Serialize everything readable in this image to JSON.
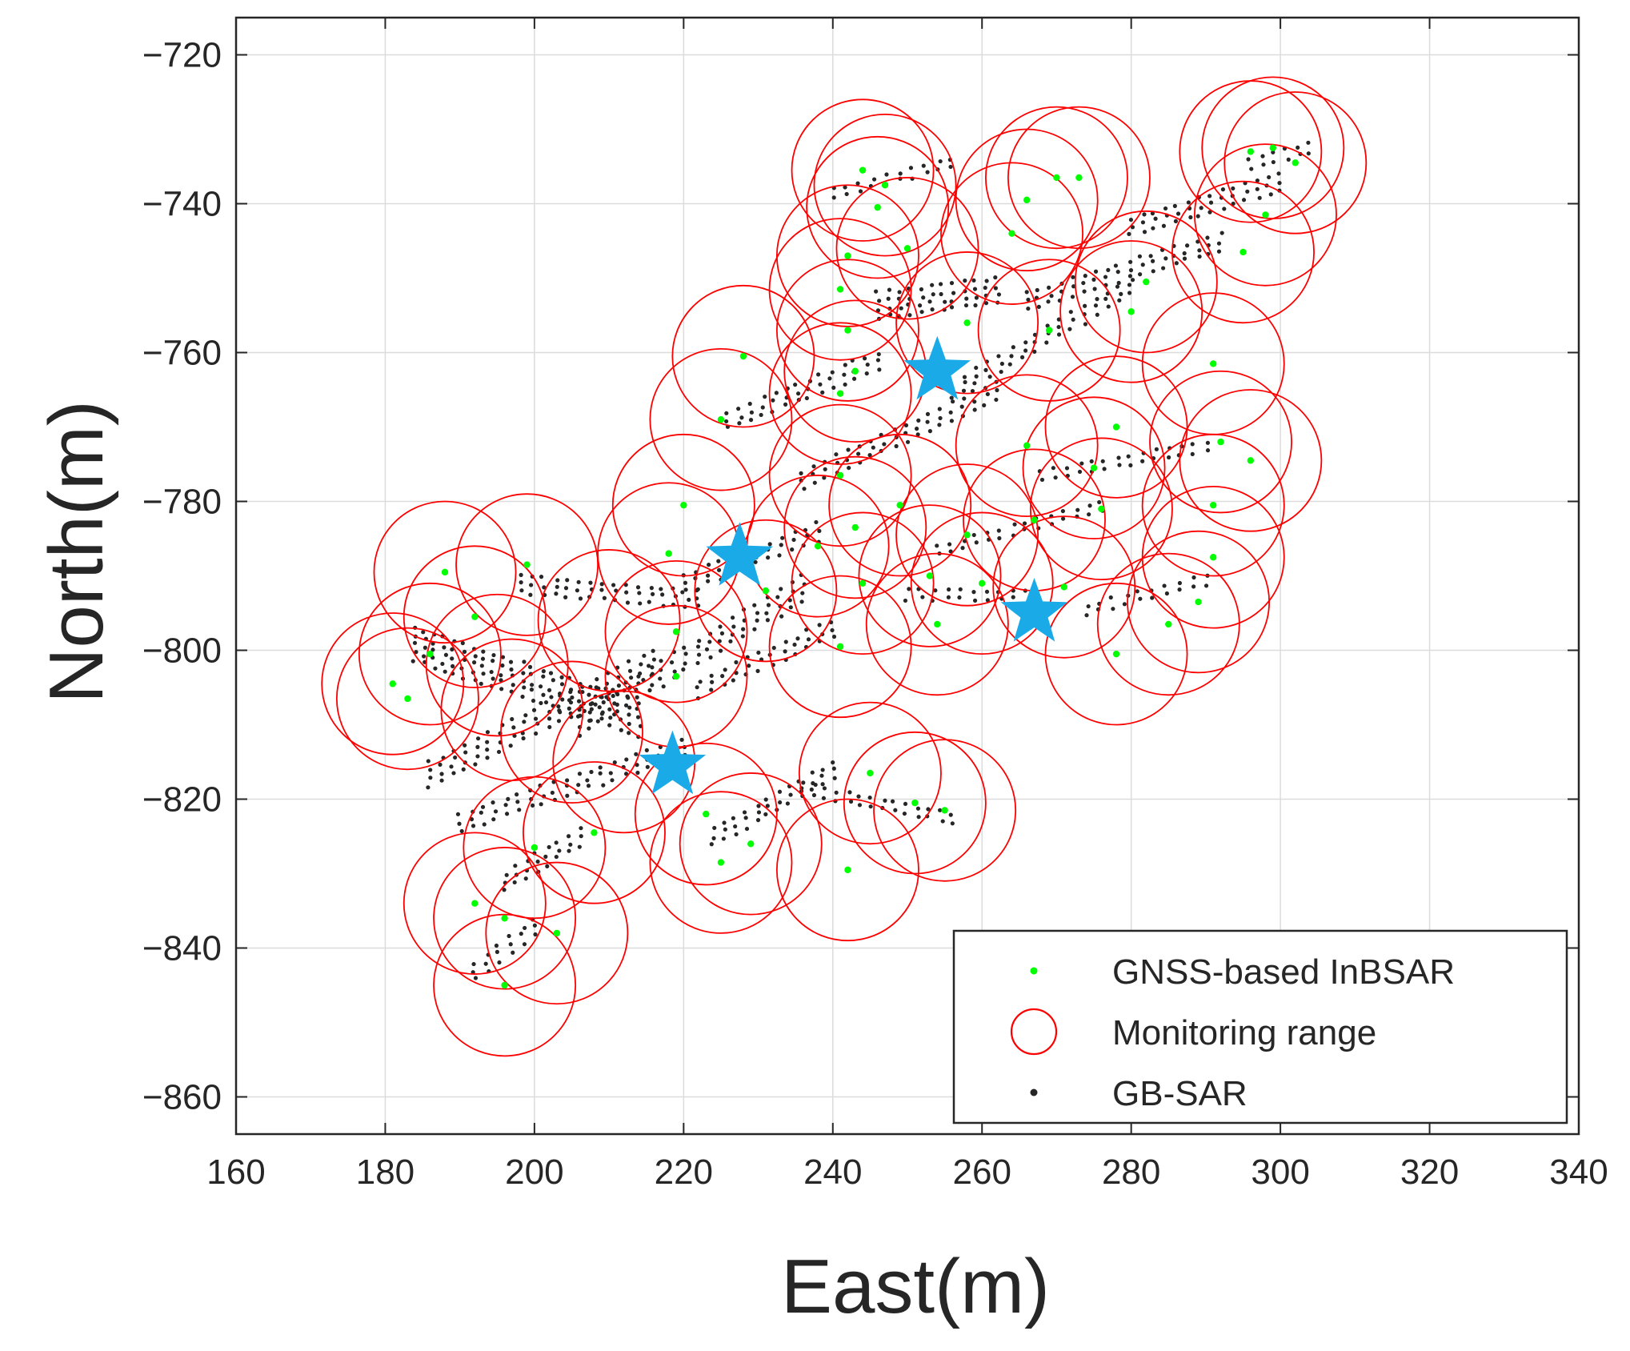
{
  "chart_data": {
    "type": "scatter",
    "title": "",
    "xlabel": "East(m)",
    "ylabel": "North(m)",
    "xlim": [
      160,
      340
    ],
    "ylim": [
      -865,
      -715
    ],
    "xticks": [
      160,
      180,
      200,
      220,
      240,
      260,
      280,
      300,
      320,
      340
    ],
    "yticks": [
      -720,
      -740,
      -760,
      -780,
      -800,
      -820,
      -840,
      -860
    ],
    "grid": true,
    "legend_position": "bottom-right",
    "monitoring_radius_m": 9.5,
    "series": [
      {
        "name": "GNSS-based InBSAR",
        "marker": "point",
        "color": "#00ff00",
        "points": [
          [
            181,
            -804.5
          ],
          [
            183,
            -806.5
          ],
          [
            186,
            -800.5
          ],
          [
            188,
            -789.5
          ],
          [
            192,
            -795.5
          ],
          [
            199,
            -788.5
          ],
          [
            192,
            -834
          ],
          [
            196,
            -836
          ],
          [
            203,
            -838
          ],
          [
            196,
            -845
          ],
          [
            208,
            -824.5
          ],
          [
            200,
            -826.5
          ],
          [
            218,
            -787
          ],
          [
            220,
            -780.5
          ],
          [
            219,
            -797.5
          ],
          [
            219,
            -803.5
          ],
          [
            225,
            -769
          ],
          [
            228,
            -760.5
          ],
          [
            225,
            -828.5
          ],
          [
            229,
            -826
          ],
          [
            223,
            -822
          ],
          [
            231,
            -792
          ],
          [
            238,
            -786
          ],
          [
            243,
            -783.5
          ],
          [
            244,
            -791
          ],
          [
            241,
            -799.5
          ],
          [
            242,
            -829.5
          ],
          [
            245,
            -816.5
          ],
          [
            251,
            -820.5
          ],
          [
            255,
            -821.5
          ],
          [
            242,
            -747
          ],
          [
            241,
            -751.5
          ],
          [
            242,
            -757
          ],
          [
            243,
            -762.5
          ],
          [
            241,
            -765.5
          ],
          [
            244,
            -735.5
          ],
          [
            247,
            -737.5
          ],
          [
            246,
            -740.5
          ],
          [
            241,
            -776.5
          ],
          [
            250,
            -746
          ],
          [
            249,
            -780.5
          ],
          [
            254,
            -796.5
          ],
          [
            253,
            -790
          ],
          [
            258,
            -784.5
          ],
          [
            260,
            -791
          ],
          [
            267,
            -782.5
          ],
          [
            266,
            -739.5
          ],
          [
            264,
            -744
          ],
          [
            270,
            -736.5
          ],
          [
            273,
            -736.5
          ],
          [
            269,
            -757
          ],
          [
            266,
            -772.5
          ],
          [
            275,
            -775.5
          ],
          [
            276,
            -781
          ],
          [
            278,
            -800.5
          ],
          [
            280,
            -754.5
          ],
          [
            282,
            -750.5
          ],
          [
            285,
            -796.5
          ],
          [
            289,
            -793.5
          ],
          [
            291,
            -787.5
          ],
          [
            291,
            -780.5
          ],
          [
            291,
            -761.5
          ],
          [
            292,
            -772
          ],
          [
            296,
            -774.5
          ],
          [
            295,
            -746.5
          ],
          [
            296,
            -733
          ],
          [
            298,
            -741.5
          ],
          [
            299,
            -732.5
          ],
          [
            302,
            -734.5
          ],
          [
            271,
            -791.5
          ],
          [
            278,
            -770
          ],
          [
            258,
            -756
          ]
        ]
      },
      {
        "name": "Monitoring range",
        "marker": "circle",
        "color": "#ff0000",
        "centers": [
          [
            181,
            -804.5
          ],
          [
            183,
            -806.5
          ],
          [
            186,
            -800.5
          ],
          [
            188,
            -789.5
          ],
          [
            192,
            -795.5
          ],
          [
            199,
            -788.5
          ],
          [
            192,
            -834
          ],
          [
            196,
            -836
          ],
          [
            203,
            -838
          ],
          [
            196,
            -845
          ],
          [
            208,
            -824.5
          ],
          [
            200,
            -826.5
          ],
          [
            218,
            -787
          ],
          [
            220,
            -780.5
          ],
          [
            219,
            -797.5
          ],
          [
            219,
            -803.5
          ],
          [
            225,
            -769
          ],
          [
            228,
            -760.5
          ],
          [
            225,
            -828.5
          ],
          [
            229,
            -826
          ],
          [
            223,
            -822
          ],
          [
            231,
            -792
          ],
          [
            238,
            -786
          ],
          [
            243,
            -783.5
          ],
          [
            244,
            -791
          ],
          [
            241,
            -799.5
          ],
          [
            242,
            -829.5
          ],
          [
            245,
            -816.5
          ],
          [
            251,
            -820.5
          ],
          [
            255,
            -821.5
          ],
          [
            242,
            -747
          ],
          [
            241,
            -751.5
          ],
          [
            242,
            -757
          ],
          [
            243,
            -762.5
          ],
          [
            241,
            -765.5
          ],
          [
            244,
            -735.5
          ],
          [
            247,
            -737.5
          ],
          [
            246,
            -740.5
          ],
          [
            241,
            -776.5
          ],
          [
            250,
            -746
          ],
          [
            249,
            -780.5
          ],
          [
            254,
            -796.5
          ],
          [
            253,
            -790
          ],
          [
            258,
            -784.5
          ],
          [
            260,
            -791
          ],
          [
            267,
            -782.5
          ],
          [
            266,
            -739.5
          ],
          [
            264,
            -744
          ],
          [
            270,
            -736.5
          ],
          [
            273,
            -736.5
          ],
          [
            269,
            -757
          ],
          [
            266,
            -772.5
          ],
          [
            275,
            -775.5
          ],
          [
            276,
            -781
          ],
          [
            278,
            -800.5
          ],
          [
            280,
            -754.5
          ],
          [
            282,
            -750.5
          ],
          [
            285,
            -796.5
          ],
          [
            289,
            -793.5
          ],
          [
            291,
            -787.5
          ],
          [
            291,
            -780.5
          ],
          [
            291,
            -761.5
          ],
          [
            292,
            -772
          ],
          [
            296,
            -774.5
          ],
          [
            295,
            -746.5
          ],
          [
            296,
            -733
          ],
          [
            298,
            -741.5
          ],
          [
            299,
            -732.5
          ],
          [
            302,
            -734.5
          ],
          [
            271,
            -791.5
          ],
          [
            278,
            -770
          ],
          [
            258,
            -756
          ],
          [
            197,
            -808
          ],
          [
            205,
            -811
          ],
          [
            212,
            -815
          ],
          [
            210,
            -796
          ],
          [
            195,
            -802
          ]
        ]
      },
      {
        "name": "GB-SAR",
        "marker": "point",
        "color": "#262626",
        "clusters": [
          {
            "x0": 184,
            "y0": -797,
            "x1": 214,
            "y1": -807,
            "rows": 5,
            "cols": 24
          },
          {
            "x0": 186,
            "y0": -815,
            "x1": 216,
            "y1": -800,
            "rows": 4,
            "cols": 20
          },
          {
            "x0": 190,
            "y0": -822,
            "x1": 220,
            "y1": -812,
            "rows": 3,
            "cols": 20
          },
          {
            "x0": 198,
            "y0": -790,
            "x1": 222,
            "y1": -792,
            "rows": 3,
            "cols": 16
          },
          {
            "x0": 206,
            "y0": -808,
            "x1": 236,
            "y1": -790,
            "rows": 4,
            "cols": 20
          },
          {
            "x0": 220,
            "y0": -790,
            "x1": 238,
            "y1": -783,
            "rows": 3,
            "cols": 12
          },
          {
            "x0": 222,
            "y0": -804,
            "x1": 240,
            "y1": -796,
            "rows": 3,
            "cols": 12
          },
          {
            "x0": 196,
            "y0": -830,
            "x1": 206,
            "y1": -824,
            "rows": 3,
            "cols": 8
          },
          {
            "x0": 192,
            "y0": -842,
            "x1": 200,
            "y1": -836,
            "rows": 3,
            "cols": 6
          },
          {
            "x0": 224,
            "y0": -824,
            "x1": 240,
            "y1": -815,
            "rows": 3,
            "cols": 12
          },
          {
            "x0": 236,
            "y0": -818,
            "x1": 256,
            "y1": -822,
            "rows": 2,
            "cols": 14
          },
          {
            "x0": 226,
            "y0": -768,
            "x1": 246,
            "y1": -760,
            "rows": 3,
            "cols": 14
          },
          {
            "x0": 236,
            "y0": -776,
            "x1": 262,
            "y1": -764,
            "rows": 3,
            "cols": 18
          },
          {
            "x0": 246,
            "y0": -752,
            "x1": 262,
            "y1": -750,
            "rows": 4,
            "cols": 12
          },
          {
            "x0": 240,
            "y0": -738,
            "x1": 256,
            "y1": -734,
            "rows": 2,
            "cols": 10
          },
          {
            "x0": 256,
            "y0": -764,
            "x1": 280,
            "y1": -750,
            "rows": 3,
            "cols": 16
          },
          {
            "x0": 266,
            "y0": -752,
            "x1": 292,
            "y1": -744,
            "rows": 3,
            "cols": 18
          },
          {
            "x0": 280,
            "y0": -742,
            "x1": 300,
            "y1": -736,
            "rows": 3,
            "cols": 14
          },
          {
            "x0": 296,
            "y0": -734,
            "x1": 304,
            "y1": -732,
            "rows": 2,
            "cols": 6
          },
          {
            "x0": 254,
            "y0": -786,
            "x1": 276,
            "y1": -780,
            "rows": 2,
            "cols": 14
          },
          {
            "x0": 268,
            "y0": -776,
            "x1": 290,
            "y1": -772,
            "rows": 2,
            "cols": 14
          },
          {
            "x0": 250,
            "y0": -792,
            "x1": 266,
            "y1": -792,
            "rows": 2,
            "cols": 10
          },
          {
            "x0": 274,
            "y0": -794,
            "x1": 290,
            "y1": -790,
            "rows": 2,
            "cols": 10
          }
        ]
      }
    ],
    "highlighted_stations": {
      "marker": "star",
      "color": "#1aaae8",
      "points": [
        [
          254,
          -762.5
        ],
        [
          227.5,
          -787.5
        ],
        [
          267,
          -795
        ],
        [
          218.5,
          -815.5
        ]
      ]
    },
    "legend": [
      {
        "label": "GNSS-based InBSAR",
        "marker": "point",
        "color": "#00ff00"
      },
      {
        "label": "Monitoring range",
        "marker": "circle",
        "color": "#ff0000"
      },
      {
        "label": "GB-SAR",
        "marker": "point",
        "color": "#262626"
      }
    ]
  },
  "colors": {
    "frame": "#262626",
    "grid": "#dcdcdc",
    "background": "#ffffff"
  }
}
